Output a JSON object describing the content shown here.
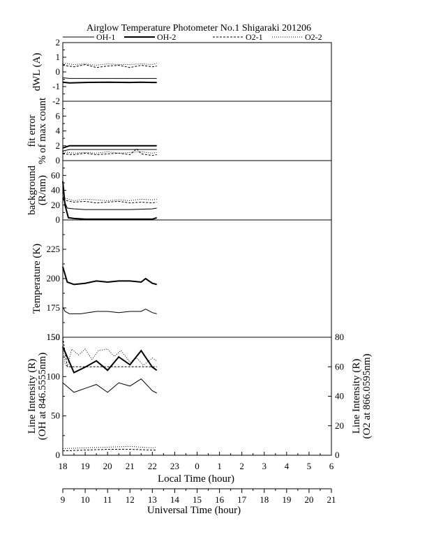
{
  "title": "Airglow Temperature Photometer No.1  Shigaraki  201206",
  "legend": [
    {
      "label": "OH-1",
      "style": "solid-thin"
    },
    {
      "label": "OH-2",
      "style": "solid-thick"
    },
    {
      "label": "O2-1",
      "style": "dashed"
    },
    {
      "label": "O2-2",
      "style": "dotted"
    }
  ],
  "x_axis": {
    "local_label": "Local Time (hour)",
    "local_ticks": [
      "18",
      "19",
      "20",
      "21",
      "22",
      "23",
      "0",
      "1",
      "2",
      "3",
      "4",
      "5",
      "6"
    ],
    "ut_label": "Universal Time (hour)",
    "ut_ticks": [
      "9",
      "10",
      "11",
      "12",
      "13",
      "14",
      "15",
      "16",
      "17",
      "18",
      "19",
      "20",
      "21"
    ]
  },
  "chart_data": [
    {
      "type": "line",
      "panel": "dwl",
      "ylabel": [
        "dWL (A)"
      ],
      "ylim": [
        -2,
        2
      ],
      "yticks": [
        "-2",
        "-1",
        "0",
        "1",
        "2"
      ],
      "tick_values": [
        -2,
        -1,
        0,
        1,
        2
      ],
      "xlim": [
        18,
        30
      ],
      "series": [
        {
          "name": "OH-1",
          "style": "solid-thin",
          "x": [
            18.0,
            18.3,
            19.0,
            20.0,
            21.0,
            21.5,
            22.0,
            22.2
          ],
          "y": [
            -0.4,
            -0.45,
            -0.45,
            -0.45,
            -0.45,
            -0.45,
            -0.45,
            -0.45
          ]
        },
        {
          "name": "OH-2",
          "style": "solid-thick",
          "x": [
            18.0,
            18.3,
            19.0,
            20.0,
            21.0,
            21.5,
            22.0,
            22.2
          ],
          "y": [
            -0.7,
            -0.75,
            -0.72,
            -0.7,
            -0.72,
            -0.7,
            -0.72,
            -0.72
          ]
        },
        {
          "name": "O2-1",
          "style": "dashed",
          "x": [
            18.0,
            18.5,
            19.0,
            19.5,
            20.0,
            20.5,
            21.0,
            21.5,
            22.0,
            22.2
          ],
          "y": [
            0.45,
            0.35,
            0.5,
            0.3,
            0.4,
            0.45,
            0.3,
            0.45,
            0.35,
            0.4
          ]
        },
        {
          "name": "O2-2",
          "style": "dotted",
          "x": [
            18.0,
            18.5,
            19.0,
            19.5,
            20.0,
            20.5,
            21.0,
            21.5,
            22.0,
            22.2
          ],
          "y": [
            0.6,
            0.5,
            0.55,
            0.45,
            0.55,
            0.5,
            0.5,
            0.55,
            0.5,
            0.6
          ]
        }
      ]
    },
    {
      "type": "line",
      "panel": "fit_error",
      "ylabel": [
        "fit error",
        "% of max count"
      ],
      "ylim": [
        0,
        8
      ],
      "yticks": [
        "0",
        "2",
        "4",
        "6"
      ],
      "tick_values": [
        0,
        2,
        4,
        6
      ],
      "xlim": [
        18,
        30
      ],
      "series": [
        {
          "name": "OH-1",
          "style": "solid-thin",
          "x": [
            18.0,
            18.3,
            19.0,
            20.0,
            21.0,
            21.5,
            22.0,
            22.2
          ],
          "y": [
            1.3,
            1.5,
            1.5,
            1.5,
            1.5,
            1.5,
            1.5,
            1.5
          ]
        },
        {
          "name": "OH-2",
          "style": "solid-thick",
          "x": [
            18.0,
            18.3,
            19.0,
            20.0,
            21.0,
            21.5,
            22.0,
            22.2
          ],
          "y": [
            1.7,
            2.0,
            2.0,
            2.0,
            2.0,
            2.0,
            2.0,
            2.0
          ]
        },
        {
          "name": "O2-1",
          "style": "dashed",
          "x": [
            18.0,
            18.5,
            19.0,
            19.5,
            20.0,
            20.5,
            21.0,
            21.3,
            21.5,
            22.0,
            22.2
          ],
          "y": [
            0.9,
            0.8,
            1.0,
            0.8,
            0.9,
            1.0,
            0.8,
            1.6,
            0.9,
            0.7,
            0.8
          ]
        },
        {
          "name": "O2-2",
          "style": "dotted",
          "x": [
            18.0,
            18.5,
            19.0,
            19.5,
            20.0,
            20.5,
            21.0,
            21.5,
            22.0,
            22.2
          ],
          "y": [
            1.2,
            1.0,
            1.1,
            1.0,
            1.2,
            1.0,
            1.1,
            1.2,
            1.0,
            1.1
          ]
        }
      ]
    },
    {
      "type": "line",
      "panel": "background",
      "ylabel": [
        "background",
        "(R/nm)"
      ],
      "ylim": [
        0,
        80
      ],
      "yticks": [
        "0",
        "20",
        "40",
        "60"
      ],
      "tick_values": [
        0,
        20,
        40,
        60
      ],
      "xlim": [
        18,
        30
      ],
      "series": [
        {
          "name": "OH-1",
          "style": "solid-thin",
          "x": [
            18.0,
            18.2,
            18.5,
            19.0,
            20.0,
            21.0,
            22.0,
            22.2
          ],
          "y": [
            30,
            16,
            15,
            14,
            14,
            14,
            15,
            16
          ]
        },
        {
          "name": "OH-2",
          "style": "solid-thick",
          "x": [
            18.0,
            18.1,
            18.25,
            18.5,
            19.0,
            20.0,
            21.0,
            22.0,
            22.2
          ],
          "y": [
            52,
            20,
            3,
            2,
            1,
            1,
            1,
            1,
            3
          ]
        },
        {
          "name": "O2-1",
          "style": "dashed",
          "x": [
            18.0,
            18.5,
            19.0,
            19.5,
            20.0,
            20.5,
            21.0,
            21.5,
            22.0,
            22.2
          ],
          "y": [
            27,
            24,
            25,
            23,
            24,
            25,
            23,
            24,
            23,
            24
          ]
        },
        {
          "name": "O2-2",
          "style": "dotted",
          "x": [
            18.0,
            18.5,
            19.0,
            19.5,
            20.0,
            20.5,
            21.0,
            21.5,
            22.0,
            22.2
          ],
          "y": [
            30,
            26,
            28,
            27,
            26,
            27,
            26,
            28,
            27,
            28
          ]
        }
      ]
    },
    {
      "type": "line",
      "panel": "temperature",
      "ylabel": [
        "Temperature (K)"
      ],
      "ylim": [
        150,
        250
      ],
      "yticks": [
        "150",
        "175",
        "200",
        "225"
      ],
      "tick_values": [
        150,
        175,
        200,
        225
      ],
      "xlim": [
        18,
        30
      ],
      "series": [
        {
          "name": "OH-1",
          "style": "solid-thin",
          "x": [
            18.0,
            18.1,
            18.3,
            18.8,
            19.5,
            20.0,
            20.5,
            21.0,
            21.5,
            21.7,
            22.0,
            22.2
          ],
          "y": [
            176,
            172,
            170,
            170,
            172,
            172,
            171,
            172,
            172,
            174,
            171,
            170
          ]
        },
        {
          "name": "OH-2",
          "style": "solid-thick",
          "x": [
            18.0,
            18.2,
            18.5,
            19.0,
            19.5,
            20.0,
            20.5,
            21.0,
            21.5,
            21.7,
            22.0,
            22.2
          ],
          "y": [
            210,
            197,
            195,
            196,
            198,
            197,
            198,
            198,
            197,
            200,
            196,
            195
          ]
        }
      ]
    },
    {
      "type": "line",
      "panel": "line_intensity",
      "ylabel": [
        "Line Intensity (R)",
        "(OH at 846.5555nm)"
      ],
      "ylabel_right": [
        "Line Intensity (R)",
        "(O2 at 866.0595nm)"
      ],
      "ylim": [
        0,
        150
      ],
      "yticks": [
        "0",
        "50",
        "100",
        "150"
      ],
      "tick_values": [
        0,
        50,
        100,
        150
      ],
      "ylim_right": [
        0,
        80
      ],
      "yticks_right": [
        "0",
        "20",
        "40",
        "60",
        "80"
      ],
      "tick_values_right": [
        0,
        20,
        40,
        60,
        80
      ],
      "xlim": [
        18,
        30
      ],
      "series": [
        {
          "name": "OH-1",
          "style": "solid-thin",
          "axis": "left",
          "x": [
            18.0,
            18.5,
            19.0,
            19.5,
            20.0,
            20.5,
            21.0,
            21.5,
            22.0,
            22.2
          ],
          "y": [
            92,
            80,
            85,
            90,
            80,
            92,
            88,
            97,
            82,
            79
          ]
        },
        {
          "name": "OH-2",
          "style": "solid-thick",
          "axis": "left",
          "x": [
            18.0,
            18.5,
            19.0,
            19.5,
            20.0,
            20.5,
            21.0,
            21.5,
            22.0,
            22.2
          ],
          "y": [
            138,
            105,
            112,
            120,
            108,
            125,
            115,
            133,
            112,
            108
          ]
        },
        {
          "name": "O2-1",
          "style": "dashed",
          "axis": "right",
          "x": [
            18.0,
            18.1,
            18.2,
            18.5,
            19.0,
            20.0,
            21.0,
            22.0,
            22.2
          ],
          "y": [
            80,
            70,
            60,
            60,
            60,
            60,
            60,
            60,
            60
          ]
        },
        {
          "name": "O2-2",
          "style": "dotted",
          "axis": "right",
          "x": [
            18.0,
            18.1,
            18.2,
            18.4,
            18.7,
            19.0,
            19.3,
            19.6,
            20.0,
            20.3,
            20.6,
            21.0,
            21.3,
            21.6,
            22.0,
            22.2
          ],
          "y": [
            75,
            62,
            60,
            72,
            68,
            72,
            65,
            71,
            72,
            67,
            71,
            63,
            66,
            61,
            66,
            64
          ]
        },
        {
          "name": "O2-1 low",
          "style": "dashed",
          "axis": "right",
          "x": [
            18.0,
            19.0,
            20.0,
            21.0,
            22.0,
            22.2
          ],
          "y": [
            3,
            3.5,
            4,
            4,
            3.5,
            3.5
          ]
        },
        {
          "name": "O2-2 low",
          "style": "dotted",
          "axis": "right",
          "x": [
            18.0,
            19.0,
            20.0,
            21.0,
            22.0,
            22.2
          ],
          "y": [
            4.5,
            5,
            5.5,
            6,
            5,
            5.5
          ]
        }
      ]
    }
  ]
}
